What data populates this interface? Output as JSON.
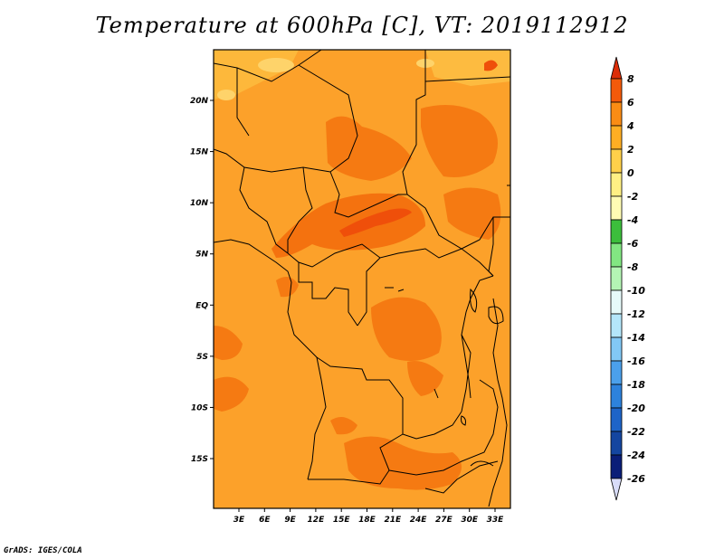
{
  "title": "Temperature at 600hPa [C], VT: 2019112912",
  "credit": "GrADS: IGES/COLA",
  "chart_data": {
    "type": "map",
    "variable": "Temperature at 600hPa",
    "units": "C",
    "valid_time": "2019112912",
    "lon_range": [
      0,
      35
    ],
    "lat_range": [
      -20,
      25
    ],
    "x_ticks": [
      "3E",
      "6E",
      "9E",
      "12E",
      "15E",
      "18E",
      "21E",
      "24E",
      "27E",
      "30E",
      "33E"
    ],
    "x_tick_values": [
      3,
      6,
      9,
      12,
      15,
      18,
      21,
      24,
      27,
      30,
      33
    ],
    "y_ticks": [
      "20N",
      "15N",
      "10N",
      "5N",
      "EQ",
      "5S",
      "10S",
      "15S"
    ],
    "y_tick_values": [
      20,
      15,
      10,
      5,
      0,
      -5,
      -10,
      -15
    ],
    "colorbar": {
      "levels": [
        8,
        6,
        4,
        2,
        0,
        -2,
        -4,
        -6,
        -8,
        -10,
        -12,
        -14,
        -16,
        -18,
        -20,
        -22,
        -24,
        -26
      ],
      "colors": [
        "#dc2d08",
        "#f35a0a",
        "#fa8c14",
        "#ffae23",
        "#ffd04a",
        "#fff084",
        "#fffcb4",
        "#3cbe3c",
        "#82e682",
        "#b4f5b4",
        "#e6fafa",
        "#b4e6fa",
        "#82c8f5",
        "#4ba0eb",
        "#2d82dc",
        "#1e64c8",
        "#1446a0",
        "#0a1e78",
        "#d8dcf8"
      ],
      "arrows": "both"
    },
    "dominant_range": [
      2,
      6
    ]
  }
}
